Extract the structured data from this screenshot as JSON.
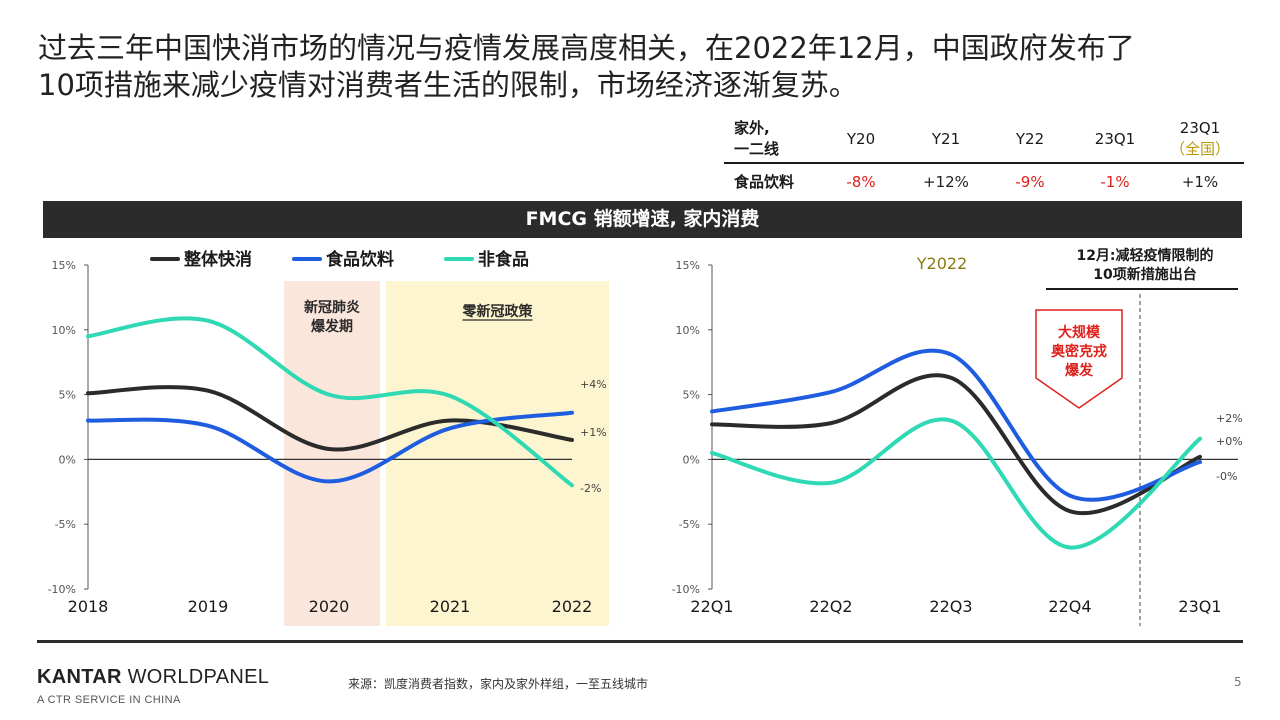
{
  "title": {
    "line1": "过去三年中国快消市场的情况与疫情发展高度相关，在2022年12月，中国政府发布了",
    "line2": "10项措施来减少疫情对消费者生活的限制，市场经济逐渐复苏。"
  },
  "ooh_table": {
    "header_label": [
      "家外,",
      "一二线"
    ],
    "columns": [
      "Y20",
      "Y21",
      "Y22",
      "23Q1"
    ],
    "last_column": [
      "23Q1",
      "（全国）"
    ],
    "row_label": "食品饮料",
    "values": [
      "-8%",
      "+12%",
      "-9%",
      "-1%",
      "+1%"
    ],
    "colors": {
      "negative": "#e0201b",
      "positive": "#222222",
      "accent": "#b8980c"
    }
  },
  "banner": {
    "title": "FMCG 销额增速, 家内消费"
  },
  "legend": [
    {
      "label": "整体快消",
      "color": "#2b2b2b"
    },
    {
      "label": "食品饮料",
      "color": "#1f5de0"
    },
    {
      "label": "非食品",
      "color": "#2ed9b3"
    }
  ],
  "chart_data": [
    {
      "type": "line",
      "x": [
        "2018",
        "2019",
        "2020",
        "2021",
        "2022"
      ],
      "ylim": [
        -10,
        15
      ],
      "yticks": [
        "15%",
        "10%",
        "5%",
        "0%",
        "-5%",
        "-10%"
      ],
      "series": [
        {
          "name": "整体快消",
          "color": "#2b2b2b",
          "values": [
            5.1,
            5.3,
            0.8,
            3.0,
            1.5
          ],
          "end_label": "+1%"
        },
        {
          "name": "食品饮料",
          "color": "#1f5de0",
          "values": [
            3.0,
            2.6,
            -1.7,
            2.4,
            3.6
          ],
          "end_label": "+4%"
        },
        {
          "name": "非食品",
          "color": "#2ed9b3",
          "values": [
            9.5,
            10.7,
            5.0,
            4.9,
            -2.0
          ],
          "end_label": "-2%"
        }
      ],
      "shaded_periods": [
        {
          "label": [
            "新冠肺炎",
            "爆发期"
          ],
          "color": "#fbe6dc",
          "underline": false
        },
        {
          "label": [
            "零新冠政策"
          ],
          "color": "#fdf5cf",
          "underline": true
        }
      ]
    },
    {
      "type": "line",
      "x": [
        "22Q1",
        "22Q2",
        "22Q3",
        "22Q4",
        "23Q1"
      ],
      "ylim": [
        -10,
        15
      ],
      "yticks": [
        "15%",
        "10%",
        "5%",
        "0%",
        "-5%",
        "-10%"
      ],
      "subtitle": "Y2022",
      "series": [
        {
          "name": "整体快消",
          "color": "#2b2b2b",
          "values": [
            2.7,
            2.8,
            6.3,
            -4.0,
            0.2
          ],
          "end_label": "+0%"
        },
        {
          "name": "食品饮料",
          "color": "#1f5de0",
          "values": [
            3.7,
            5.2,
            8.1,
            -2.8,
            -0.2
          ],
          "end_label": "-0%"
        },
        {
          "name": "非食品",
          "color": "#2ed9b3",
          "values": [
            0.5,
            -1.8,
            3.0,
            -6.8,
            1.6
          ],
          "end_label": "+2%"
        }
      ],
      "annotation_top": [
        "12月:减轻疫情限制的",
        "10项新措施出台"
      ],
      "annotation_callout": [
        "大规模",
        "奥密克戎",
        "爆发"
      ]
    }
  ],
  "footer": {
    "brand_bold": "KANTAR",
    "brand_rest": " WORLDPANEL",
    "brand_sub": "A CTR SERVICE IN CHINA",
    "source": "来源：凯度消费者指数，家内及家外样组，一至五线城市",
    "page": "5"
  }
}
